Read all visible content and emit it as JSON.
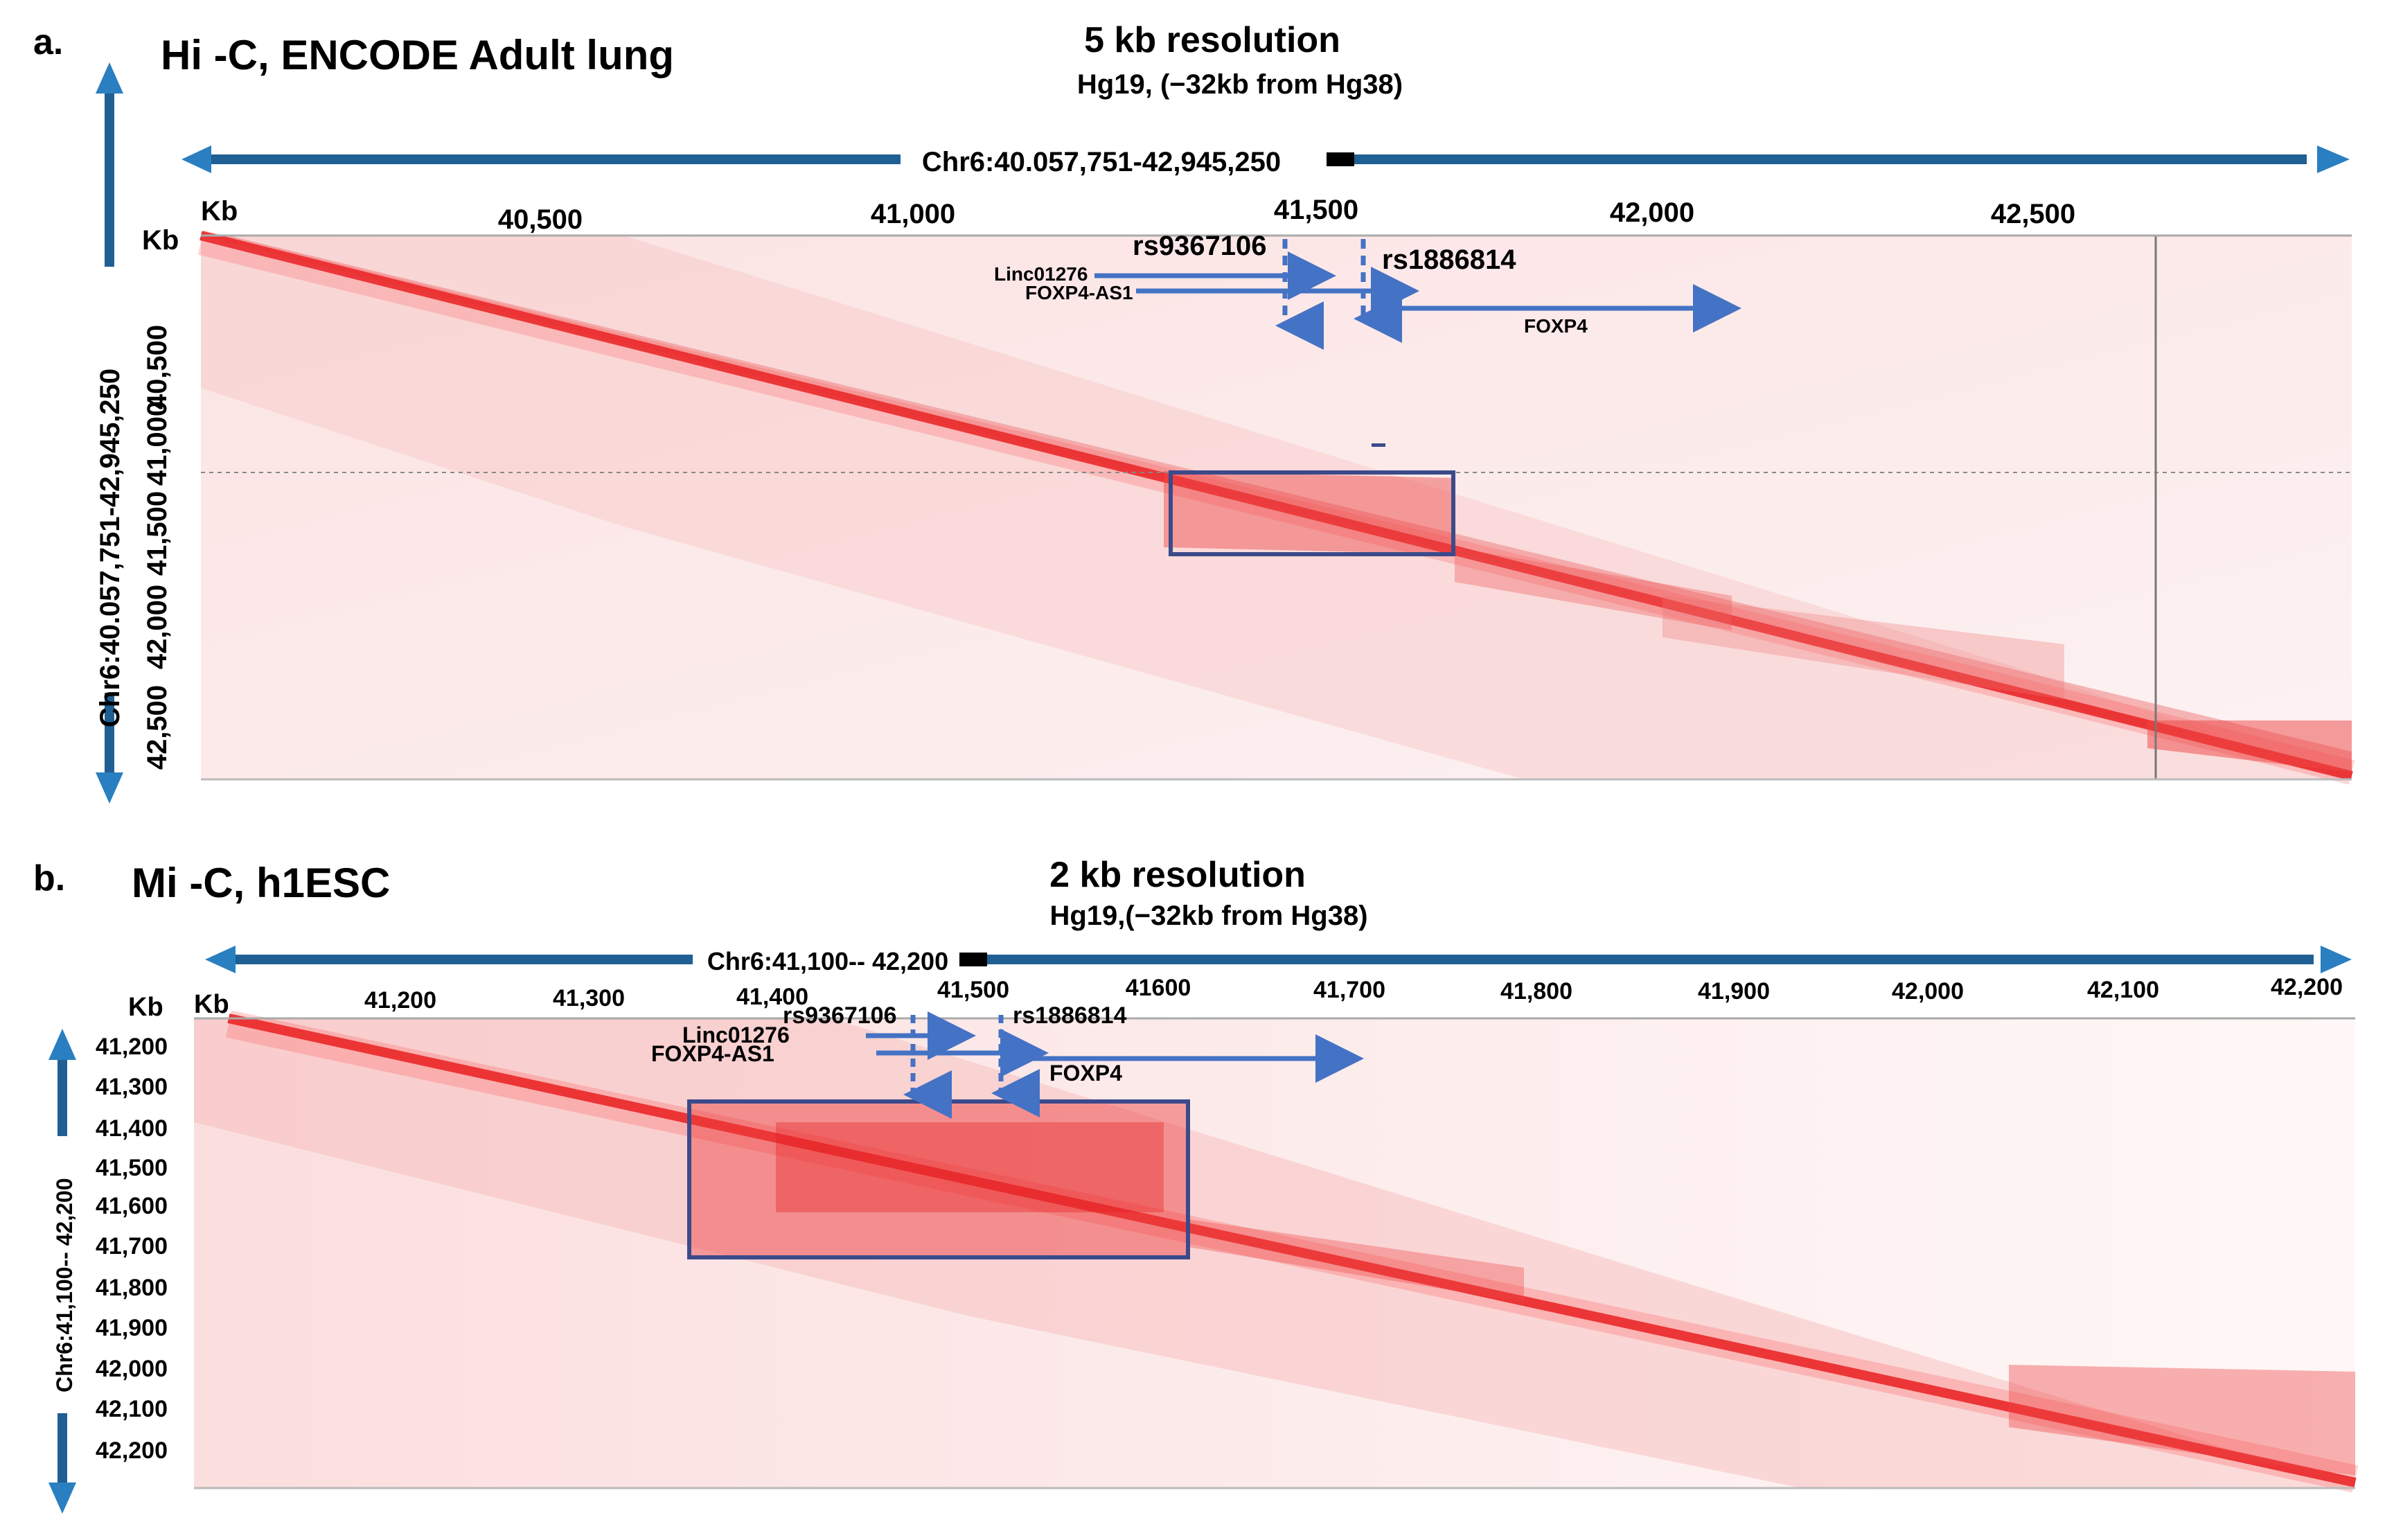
{
  "panel_a": {
    "letter": "a.",
    "title": "Hi -C, ENCODE Adult lung",
    "resolution": "5 kb resolution",
    "assembly": "Hg19, (−32kb from Hg38)",
    "range": "Chr6:40.057,751-42,945,250",
    "y_range": "Chr6:40.057,751-42,945,250",
    "kb_label_x": "Kb",
    "kb_label_y": "Kb",
    "x_ticks": [
      "40,500",
      "41,000",
      "41,500",
      "42,000",
      "42,500"
    ],
    "y_ticks": [
      "40,500",
      "41,000",
      "41,500",
      "42,000",
      "42,500"
    ],
    "snp1": "rs9367106",
    "snp2": "rs1886814",
    "gene1": "Linc01276",
    "gene2": "FOXP4-AS1",
    "gene3": "FOXP4"
  },
  "panel_b": {
    "letter": "b.",
    "title": "Mi -C, h1ESC",
    "resolution": "2 kb resolution",
    "assembly": "Hg19,(−32kb from Hg38)",
    "range": "Chr6:41,100-- 42,200",
    "y_range": "Chr6:41,100-- 42,200",
    "kb_label_x": "Kb",
    "kb_label_y": "Kb",
    "x_ticks": [
      "41,200",
      "41,300",
      "41,400",
      "41,500",
      "41600",
      "41,700",
      "41,800",
      "41,900",
      "42,000",
      "42,100",
      "42,200"
    ],
    "y_ticks": [
      "41,200",
      "41,300",
      "41,400",
      "41,500",
      "41,600",
      "41,700",
      "41,800",
      "41,900",
      "42,000",
      "42,100",
      "42,200"
    ],
    "snp1": "rs9367106",
    "snp2": "rs1886814",
    "gene1": "Linc01276",
    "gene2": "FOXP4-AS1",
    "gene3": "FOXP4"
  },
  "colors": {
    "heat": "#e41a1c",
    "arrow": "#4472c4",
    "box": "#3b4a8a",
    "axis_arrow": "#2a7fc0"
  }
}
